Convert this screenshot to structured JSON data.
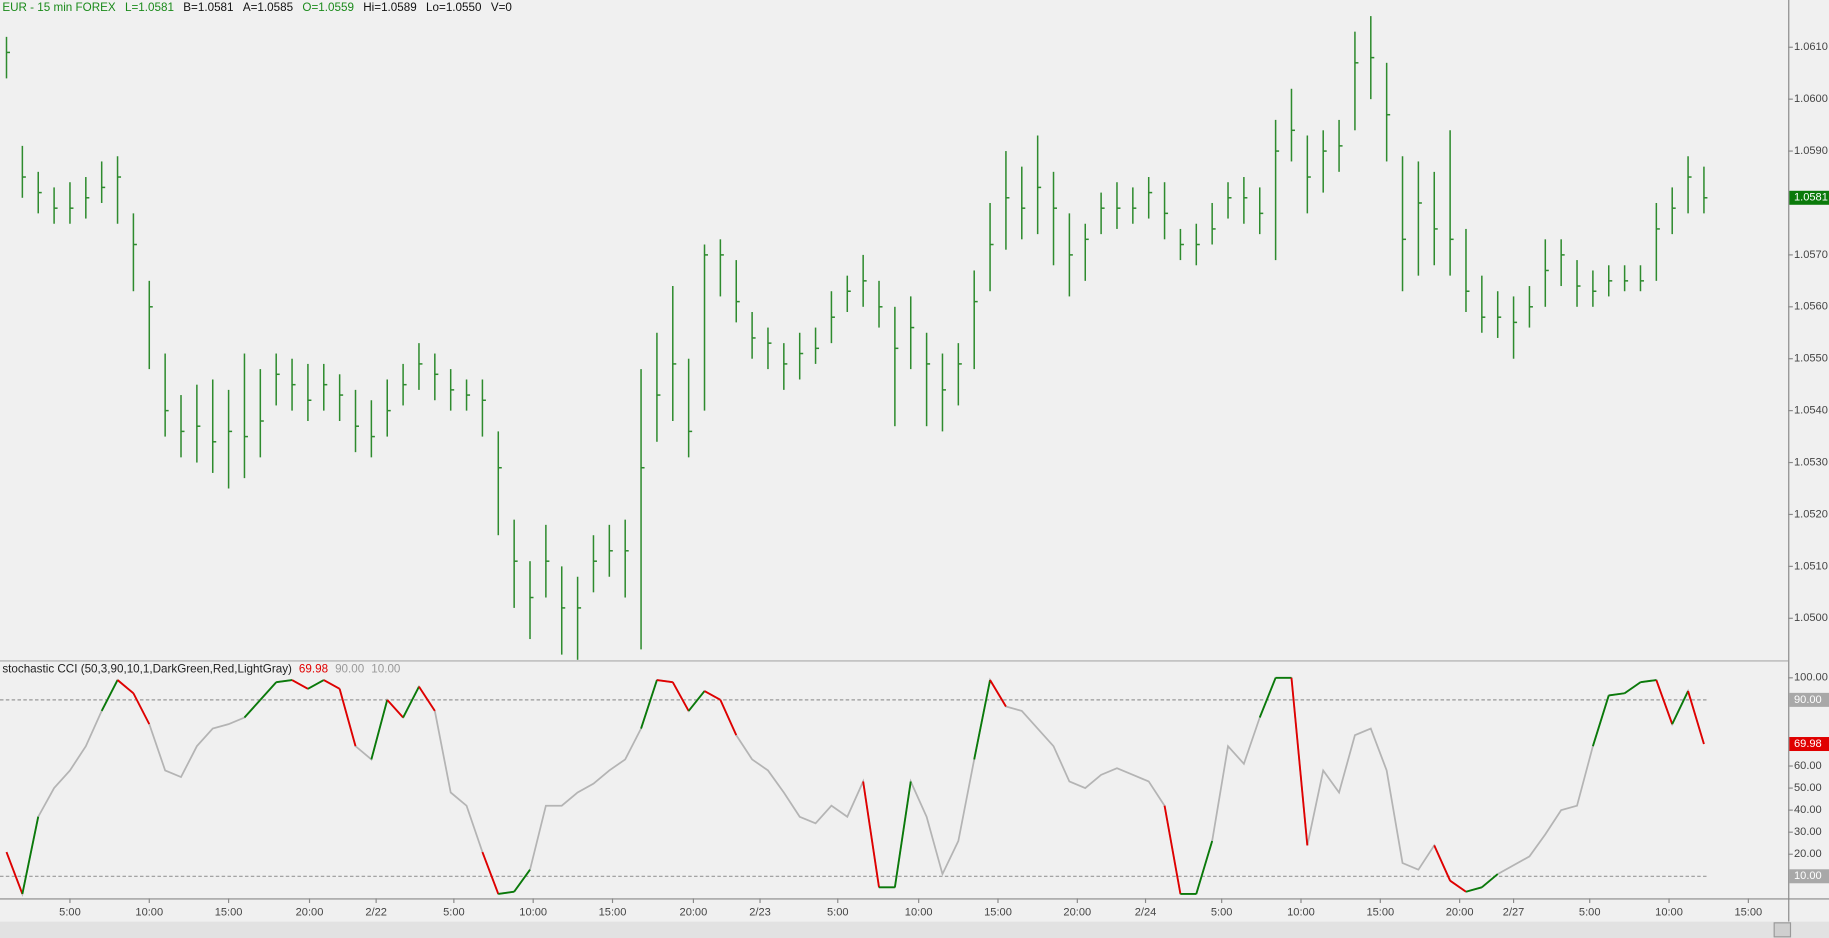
{
  "chart_data": [
    {
      "type": "ohlc",
      "title": "EUR - 15 min  FOREX",
      "quote": [
        "L=1.0581",
        "B=1.0581",
        "A=1.0585",
        "O=1.0559",
        "Hi=1.0589",
        "Lo=1.0550",
        "V=0"
      ],
      "quote_colors": [
        "#1a8a1a",
        "#111111",
        "#111111",
        "#1a8a1a",
        "#111111",
        "#111111",
        "#111111"
      ],
      "color": "#2e8b2e",
      "last_color": "#0a7a0a",
      "x": [
        1,
        2,
        3,
        4,
        5,
        6,
        7,
        8,
        9,
        10,
        11,
        12,
        13,
        14,
        15,
        16,
        17,
        18,
        19,
        20,
        21,
        22,
        23,
        24,
        25,
        26,
        27,
        28,
        29,
        30,
        31,
        32,
        33,
        34,
        35,
        36,
        37,
        38,
        39,
        40,
        41,
        42,
        43,
        44,
        45,
        46,
        47,
        48,
        49,
        50,
        51,
        52,
        53,
        54,
        55,
        56,
        57,
        58,
        59,
        60,
        61,
        62,
        63,
        64,
        65,
        66,
        67,
        68,
        69,
        70,
        71,
        72,
        73,
        74,
        75,
        76,
        77,
        78,
        79,
        80,
        81,
        82,
        83,
        84,
        85,
        86,
        87,
        88,
        89,
        90,
        91,
        92,
        93,
        94,
        95,
        96,
        97,
        98,
        99,
        100,
        101,
        102,
        103,
        104,
        105,
        106,
        107,
        108
      ],
      "high": [
        1.0612,
        1.0591,
        1.0586,
        1.0583,
        1.0584,
        1.0585,
        1.0588,
        1.0589,
        1.0578,
        1.0565,
        1.0551,
        1.0543,
        1.0545,
        1.0546,
        1.0544,
        1.0551,
        1.0548,
        1.0551,
        1.055,
        1.0549,
        1.0549,
        1.0547,
        1.0544,
        1.0542,
        1.0546,
        1.0549,
        1.0553,
        1.0551,
        1.0548,
        1.0546,
        1.0546,
        1.0536,
        1.0519,
        1.0511,
        1.0518,
        1.051,
        1.0508,
        1.0516,
        1.0518,
        1.0519,
        1.0548,
        1.0555,
        1.0564,
        1.055,
        1.0572,
        1.0573,
        1.0569,
        1.0559,
        1.0556,
        1.0553,
        1.0555,
        1.0556,
        1.0563,
        1.0566,
        1.057,
        1.0565,
        1.056,
        1.0562,
        1.0555,
        1.0551,
        1.0553,
        1.0567,
        1.058,
        1.059,
        1.0587,
        1.0593,
        1.0586,
        1.0578,
        1.0576,
        1.0582,
        1.0584,
        1.0583,
        1.0585,
        1.0584,
        1.0575,
        1.0576,
        1.058,
        1.0584,
        1.0585,
        1.0583,
        1.0596,
        1.0602,
        1.0593,
        1.0594,
        1.0596,
        1.0613,
        1.0616,
        1.0607,
        1.0589,
        1.0588,
        1.0586,
        1.0594,
        1.0575,
        1.0566,
        1.0563,
        1.0562,
        1.0564,
        1.0573,
        1.0573,
        1.0569,
        1.0567,
        1.0568,
        1.0568,
        1.0568,
        1.058,
        1.0583,
        1.0589,
        1.0587
      ],
      "low": [
        1.0604,
        1.0581,
        1.0578,
        1.0576,
        1.0576,
        1.0577,
        1.058,
        1.0576,
        1.0563,
        1.0548,
        1.0535,
        1.0531,
        1.053,
        1.0528,
        1.0525,
        1.0527,
        1.0531,
        1.0541,
        1.054,
        1.0538,
        1.054,
        1.0538,
        1.0532,
        1.0531,
        1.0535,
        1.0541,
        1.0544,
        1.0542,
        1.054,
        1.054,
        1.0535,
        1.0516,
        1.0502,
        1.0496,
        1.0504,
        1.0493,
        1.0492,
        1.0505,
        1.0508,
        1.0504,
        1.0494,
        1.0534,
        1.0538,
        1.0531,
        1.054,
        1.0562,
        1.0557,
        1.055,
        1.0548,
        1.0544,
        1.0546,
        1.0549,
        1.0553,
        1.0559,
        1.056,
        1.0556,
        1.0537,
        1.0548,
        1.0537,
        1.0536,
        1.0541,
        1.0548,
        1.0563,
        1.0571,
        1.0573,
        1.0574,
        1.0568,
        1.0562,
        1.0565,
        1.0574,
        1.0575,
        1.0576,
        1.0577,
        1.0573,
        1.0569,
        1.0568,
        1.0572,
        1.0577,
        1.0576,
        1.0574,
        1.0569,
        1.0588,
        1.0578,
        1.0582,
        1.0586,
        1.0594,
        1.06,
        1.0588,
        1.0563,
        1.0566,
        1.0568,
        1.0566,
        1.0559,
        1.0555,
        1.0554,
        1.055,
        1.0556,
        1.056,
        1.0564,
        1.056,
        1.056,
        1.0562,
        1.0563,
        1.0563,
        1.0565,
        1.0574,
        1.0578,
        1.0578
      ],
      "close": [
        1.0609,
        1.0585,
        1.0582,
        1.0579,
        1.0579,
        1.0581,
        1.0583,
        1.0585,
        1.0572,
        1.056,
        1.054,
        1.0536,
        1.0537,
        1.0534,
        1.0536,
        1.0535,
        1.0538,
        1.0547,
        1.0545,
        1.0542,
        1.0545,
        1.0543,
        1.0537,
        1.0535,
        1.054,
        1.0545,
        1.0549,
        1.0547,
        1.0544,
        1.0543,
        1.0542,
        1.0529,
        1.0511,
        1.0504,
        1.0511,
        1.0502,
        1.0502,
        1.0511,
        1.0513,
        1.0513,
        1.0529,
        1.0543,
        1.0549,
        1.0536,
        1.057,
        1.057,
        1.0561,
        1.0554,
        1.0553,
        1.0549,
        1.0551,
        1.0552,
        1.0558,
        1.0563,
        1.0565,
        1.056,
        1.0552,
        1.0556,
        1.0549,
        1.0544,
        1.0549,
        1.0561,
        1.0572,
        1.0581,
        1.0579,
        1.0583,
        1.0579,
        1.057,
        1.0573,
        1.0579,
        1.0579,
        1.0579,
        1.0582,
        1.0578,
        1.0572,
        1.0572,
        1.0575,
        1.0581,
        1.0581,
        1.0578,
        1.059,
        1.0594,
        1.0585,
        1.059,
        1.0591,
        1.0607,
        1.0608,
        1.0597,
        1.0573,
        1.058,
        1.0575,
        1.0573,
        1.0563,
        1.0558,
        1.0558,
        1.0557,
        1.056,
        1.0567,
        1.057,
        1.0564,
        1.0563,
        1.0565,
        1.0565,
        1.0565,
        1.0575,
        1.0579,
        1.0585,
        1.0581
      ],
      "xlim": [
        0.59,
        113.31
      ],
      "ylim": [
        1.04919,
        1.06191
      ],
      "yticks": [
        {
          "value": 1.05,
          "label": "1.0500"
        },
        {
          "value": 1.051,
          "label": "1.0510"
        },
        {
          "value": 1.052,
          "label": "1.0520"
        },
        {
          "value": 1.053,
          "label": "1.0530"
        },
        {
          "value": 1.054,
          "label": "1.0540"
        },
        {
          "value": 1.055,
          "label": "1.0550"
        },
        {
          "value": 1.056,
          "label": "1.0560"
        },
        {
          "value": 1.057,
          "label": "1.0570"
        },
        {
          "value": 1.059,
          "label": "1.0590"
        },
        {
          "value": 1.06,
          "label": "1.0600"
        },
        {
          "value": 1.061,
          "label": "1.0610"
        }
      ]
    },
    {
      "type": "line",
      "title": "stochastic CCI (50,3,90,10,1,DarkGreen,Red,LightGray)",
      "color": "#b4b4b4",
      "up_color": "#0a7a0a",
      "down_color": "#e00000",
      "last_color": "#e00000",
      "level_color": "#9a9a9a",
      "x": [
        1,
        2,
        3,
        4,
        5,
        6,
        7,
        8,
        9,
        10,
        11,
        12,
        13,
        14,
        15,
        16,
        17,
        18,
        19,
        20,
        21,
        22,
        23,
        24,
        25,
        26,
        27,
        28,
        29,
        30,
        31,
        32,
        33,
        34,
        35,
        36,
        37,
        38,
        39,
        40,
        41,
        42,
        43,
        44,
        45,
        46,
        47,
        48,
        49,
        50,
        51,
        52,
        53,
        54,
        55,
        56,
        57,
        58,
        59,
        60,
        61,
        62,
        63,
        64,
        65,
        66,
        67,
        68,
        69,
        70,
        71,
        72,
        73,
        74,
        75,
        76,
        77,
        78,
        79,
        80,
        81,
        82,
        83,
        84,
        85,
        86,
        87,
        88,
        89,
        90,
        91,
        92,
        93,
        94,
        95,
        96,
        97,
        98,
        99,
        100,
        101,
        102,
        103,
        104,
        105,
        106,
        107,
        108
      ],
      "values": [
        21,
        2,
        37,
        50,
        58,
        69,
        85,
        99,
        93,
        79,
        58,
        55,
        69,
        77,
        79,
        82,
        90,
        98,
        99,
        95,
        99,
        95,
        69,
        63,
        90,
        82,
        96,
        85,
        48,
        42,
        21,
        2,
        3,
        13,
        42,
        42,
        48,
        52,
        58,
        63,
        77,
        99,
        98,
        85,
        94,
        90,
        74,
        63,
        58,
        48,
        37,
        34,
        42,
        37,
        53,
        5,
        5,
        53,
        37,
        11,
        26,
        63,
        99,
        87,
        85,
        77,
        69,
        53,
        50,
        56,
        59,
        56,
        53,
        42,
        2,
        2,
        26,
        69,
        61,
        82,
        100,
        100,
        24,
        58,
        48,
        74,
        77,
        58,
        16,
        13,
        24,
        8,
        3,
        5,
        11,
        15,
        19,
        29,
        40,
        42,
        69,
        92,
        93,
        98,
        99,
        79,
        94,
        69.98
      ],
      "levels": [
        {
          "value": 90,
          "label": "90.00"
        },
        {
          "value": 10,
          "label": "10.00"
        }
      ],
      "xlim": [
        0.59,
        113.31
      ],
      "ylim": [
        0,
        107.4
      ],
      "yticks": [
        {
          "value": 20,
          "label": "20.00"
        },
        {
          "value": 30,
          "label": "30.00"
        },
        {
          "value": 40,
          "label": "40.00"
        },
        {
          "value": 50,
          "label": "50.00"
        },
        {
          "value": 60,
          "label": "60.00"
        },
        {
          "value": 100,
          "label": "100.00"
        }
      ],
      "xticks": [
        {
          "value": 5,
          "label": "5:00"
        },
        {
          "value": 10,
          "label": "10:00"
        },
        {
          "value": 15,
          "label": "15:00"
        },
        {
          "value": 20.1,
          "label": "20:00"
        },
        {
          "value": 24.3,
          "label": "2/22"
        },
        {
          "value": 29.2,
          "label": "5:00"
        },
        {
          "value": 34.2,
          "label": "10:00"
        },
        {
          "value": 39.2,
          "label": "15:00"
        },
        {
          "value": 44.3,
          "label": "20:00"
        },
        {
          "value": 48.5,
          "label": "2/23"
        },
        {
          "value": 53.4,
          "label": "5:00"
        },
        {
          "value": 58.5,
          "label": "10:00"
        },
        {
          "value": 63.5,
          "label": "15:00"
        },
        {
          "value": 68.5,
          "label": "20:00"
        },
        {
          "value": 72.8,
          "label": "2/24"
        },
        {
          "value": 77.6,
          "label": "5:00"
        },
        {
          "value": 82.6,
          "label": "10:00"
        },
        {
          "value": 87.6,
          "label": "15:00"
        },
        {
          "value": 92.6,
          "label": "20:00"
        },
        {
          "value": 96,
          "label": "2/27"
        },
        {
          "value": 100.8,
          "label": "5:00"
        },
        {
          "value": 105.8,
          "label": "10:00"
        },
        {
          "value": 110.8,
          "label": "15:00"
        }
      ]
    }
  ]
}
